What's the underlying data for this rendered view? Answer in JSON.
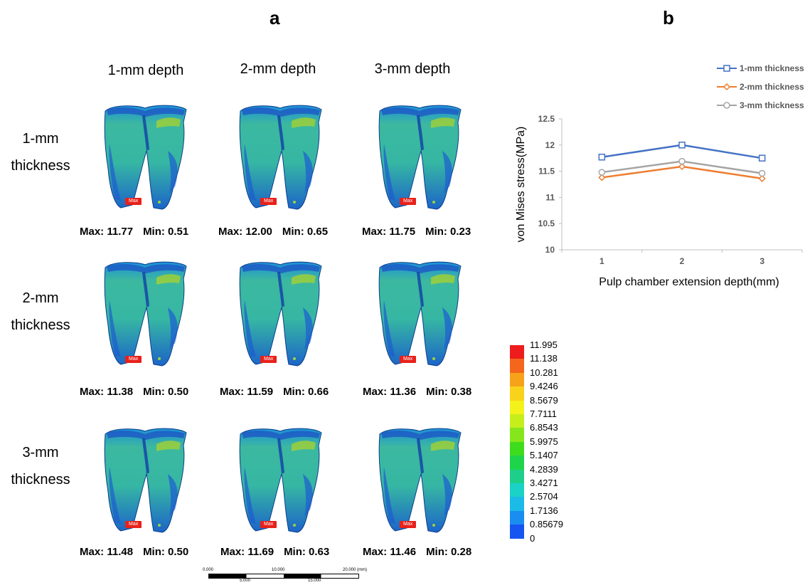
{
  "panel_a": {
    "letter": "a",
    "columns": [
      "1-mm depth",
      "2-mm depth",
      "3-mm depth"
    ],
    "rows": [
      {
        "label1": "1-mm",
        "label2": "thickness"
      },
      {
        "label1": "2-mm",
        "label2": "thickness"
      },
      {
        "label1": "3-mm",
        "label2": "thickness"
      }
    ],
    "max_tag": "Max",
    "captions": [
      [
        {
          "max": "Max: 11.77",
          "min": "Min: 0.51"
        },
        {
          "max": "Max: 12.00",
          "min": "Min: 0.65"
        },
        {
          "max": "Max: 11.75",
          "min": "Min: 0.23"
        }
      ],
      [
        {
          "max": "Max: 11.38",
          "min": "Min: 0.50"
        },
        {
          "max": "Max: 11.59",
          "min": "Min: 0.66"
        },
        {
          "max": "Max: 11.36",
          "min": "Min: 0.38"
        }
      ],
      [
        {
          "max": "Max: 11.48",
          "min": "Min: 0.50"
        },
        {
          "max": "Max: 11.69",
          "min": "Min: 0.63"
        },
        {
          "max": "Max: 11.46",
          "min": "Min: 0.28"
        }
      ]
    ],
    "color_scale": [
      {
        "value": "11.995",
        "color": "#ee1c1c"
      },
      {
        "value": "11.138",
        "color": "#f4661b"
      },
      {
        "value": "10.281",
        "color": "#f7a21b"
      },
      {
        "value": "9.4246",
        "color": "#f8d21b"
      },
      {
        "value": "8.5679",
        "color": "#f4f21b"
      },
      {
        "value": "7.7111",
        "color": "#c6ee1b"
      },
      {
        "value": "6.8543",
        "color": "#86e61c"
      },
      {
        "value": "5.9975",
        "color": "#3fdc1e"
      },
      {
        "value": "5.1407",
        "color": "#1ed44a"
      },
      {
        "value": "4.2839",
        "color": "#1ecf8c"
      },
      {
        "value": "3.4271",
        "color": "#1bd2c6"
      },
      {
        "value": "2.5704",
        "color": "#1bbbe8"
      },
      {
        "value": "1.7136",
        "color": "#1a8ef0"
      },
      {
        "value": "0.85679",
        "color": "#1655f0"
      },
      {
        "value": "0",
        "color": "#1414e6"
      }
    ],
    "scale_bar": {
      "top_ticks": [
        "0.000",
        "10.000",
        "20.000 (mm)"
      ],
      "bottom_ticks": [
        "5.000",
        "15.000"
      ]
    }
  },
  "panel_b": {
    "letter": "b"
  },
  "chart_data": {
    "type": "line",
    "x": [
      1,
      2,
      3
    ],
    "xlabel": "Pulp chamber extension depth(mm)",
    "ylabel": "von Mises stress(MPa)",
    "ylim": [
      10,
      12.5
    ],
    "yticks": [
      10,
      10.5,
      11,
      11.5,
      12,
      12.5
    ],
    "yticklabels": [
      "10",
      "10.5",
      "11",
      "11.5",
      "12",
      "12.5"
    ],
    "xticklabels": [
      "1",
      "2",
      "3"
    ],
    "legend_position": "top-right",
    "grid": false,
    "series": [
      {
        "name": "1-mm thickness",
        "values": [
          11.77,
          12.0,
          11.75
        ],
        "color": "#4472c4",
        "marker": "square"
      },
      {
        "name": "2-mm thickness",
        "values": [
          11.38,
          11.59,
          11.36
        ],
        "color": "#ed7d31",
        "marker": "diamond"
      },
      {
        "name": "3-mm thickness",
        "values": [
          11.48,
          11.69,
          11.46
        ],
        "color": "#a5a5a5",
        "marker": "circle"
      }
    ]
  }
}
